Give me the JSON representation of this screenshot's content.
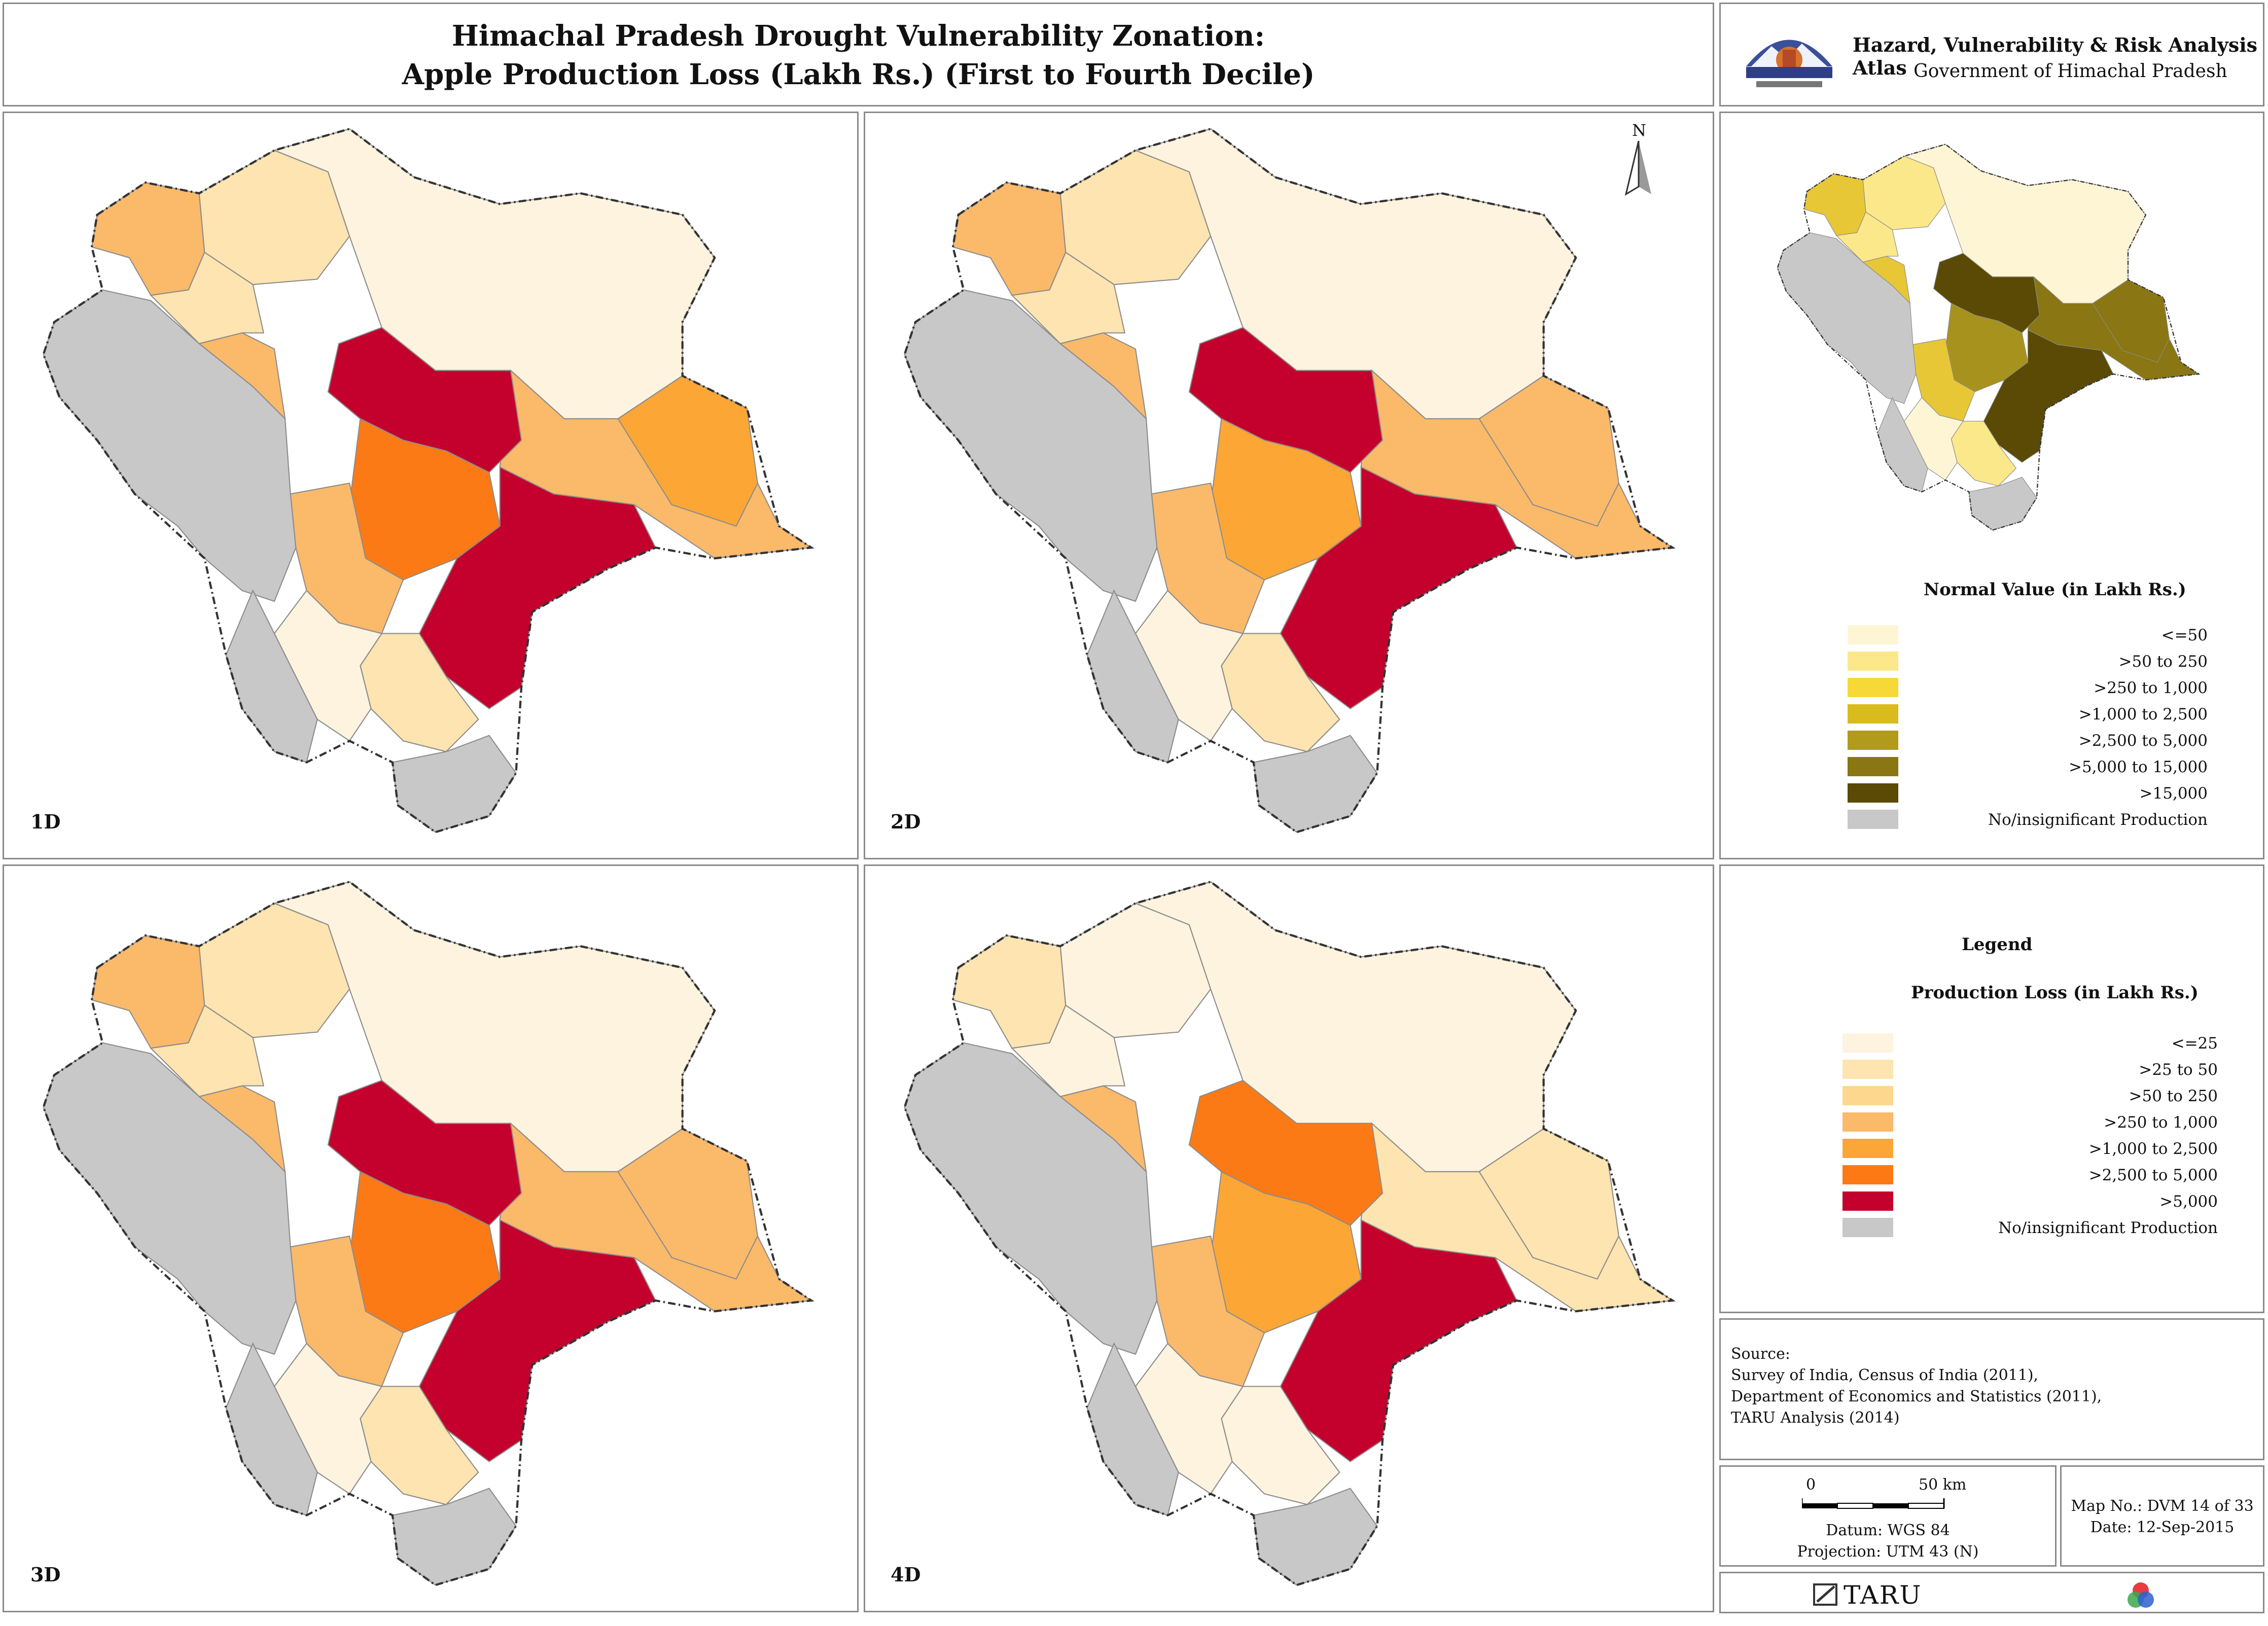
{
  "header": {
    "title_line1": "Himachal Pradesh Drought Vulnerability Zonation:",
    "title_line2": "Apple Production Loss (Lakh Rs.) (First to Fourth Decile)",
    "atlas_title": "Hazard, Vulnerability & Risk Analysis Atlas",
    "atlas_subtitle": "Government of Himachal Pradesh"
  },
  "maps": [
    {
      "label": "1D",
      "colors": {
        "north_west": "#fbb96a",
        "chamba_east": "#fde4b0",
        "lahaul": "#fef3df",
        "kinnaur": "#fbb96a",
        "kinnaur_east": "#fca636",
        "kullu": "#c4002c",
        "mandi_center": "#fb7a16",
        "shimla": "#c4002c",
        "sirmaur": "#fde4b0",
        "solan": "#fef3df",
        "mandi_west": "#fbb96a"
      }
    },
    {
      "label": "2D",
      "colors": {
        "north_west": "#fbb96a",
        "chamba_east": "#fde4b0",
        "lahaul": "#fef3df",
        "kinnaur": "#fbb96a",
        "kinnaur_east": "#fbb96a",
        "kullu": "#c4002c",
        "mandi_center": "#fca636",
        "shimla": "#c4002c",
        "sirmaur": "#fde4b0",
        "solan": "#fef3df",
        "mandi_west": "#fbb96a"
      }
    },
    {
      "label": "3D",
      "colors": {
        "north_west": "#fbb96a",
        "chamba_east": "#fde4b0",
        "lahaul": "#fef3df",
        "kinnaur": "#fbb96a",
        "kinnaur_east": "#fbb96a",
        "kullu": "#c4002c",
        "mandi_center": "#fb7a16",
        "shimla": "#c4002c",
        "sirmaur": "#fde4b0",
        "solan": "#fef3df",
        "mandi_west": "#fbb96a"
      }
    },
    {
      "label": "4D",
      "colors": {
        "north_west": "#fde4b0",
        "chamba_east": "#fef3df",
        "lahaul": "#fef3df",
        "kinnaur": "#fde4b0",
        "kinnaur_east": "#fde4b0",
        "kullu": "#fb7a16",
        "mandi_center": "#fca636",
        "shimla": "#c4002c",
        "sirmaur": "#fef3df",
        "solan": "#fef3df",
        "mandi_west": "#fbb96a"
      }
    }
  ],
  "north_arrow": {
    "label": "N"
  },
  "normal_map": {
    "title": "Normal Value (in Lakh Rs.)",
    "colors": {
      "north_west": "#e8c737",
      "chamba_east": "#fbe88a",
      "lahaul": "#fdf5d4",
      "kinnaur": "#8a7612",
      "kinnaur_east": "#8a7612",
      "kullu": "#5a4a05",
      "mandi_center": "#a8921e",
      "shimla": "#5a4a05",
      "sirmaur": "#fbe88a",
      "solan": "#fdf5d4",
      "mandi_west": "#e8c737"
    },
    "items": [
      {
        "label": "<=50",
        "color": "#fdf5d4"
      },
      {
        "label": ">50 to 250",
        "color": "#fbe88a"
      },
      {
        "label": ">250 to 1,000",
        "color": "#f6d936"
      },
      {
        "label": ">1,000 to 2,500",
        "color": "#d9bb1d"
      },
      {
        "label": ">2,500 to 5,000",
        "color": "#b19a1c"
      },
      {
        "label": ">5,000 to 15,000",
        "color": "#8a7612"
      },
      {
        "label": ">15,000",
        "color": "#5a4a05"
      },
      {
        "label": "No/insignificant Production",
        "color": "#c8c8c8"
      }
    ]
  },
  "legend": {
    "heading": "Legend",
    "title": "Production Loss (in Lakh Rs.)",
    "items": [
      {
        "label": "<=25",
        "color": "#fef3df"
      },
      {
        "label": ">25 to 50",
        "color": "#fde4b0"
      },
      {
        "label": ">50 to 250",
        "color": "#fdd78d"
      },
      {
        "label": ">250 to 1,000",
        "color": "#fbb96a"
      },
      {
        "label": ">1,000 to 2,500",
        "color": "#fca636"
      },
      {
        "label": ">2,500 to 5,000",
        "color": "#fb7a16"
      },
      {
        "label": ">5,000",
        "color": "#c4002c"
      },
      {
        "label": "No/insignificant Production",
        "color": "#c8c8c8"
      }
    ]
  },
  "source": {
    "heading": "Source:",
    "lines": [
      "Survey of India, Census of India (2011),",
      "Department of Economics and Statistics (2011),",
      "TARU Analysis (2014)"
    ]
  },
  "scale": {
    "zero": "0",
    "distance": "50 km",
    "datum": "Datum: WGS 84",
    "projection": "Projection: UTM 43 (N)"
  },
  "map_info": {
    "map_no": "Map No.: DVM 14 of 33",
    "date": "Date: 12-Sep-2015"
  },
  "footer": {
    "brand": "TARU"
  },
  "colors": {
    "no_production": "#c8c8c8",
    "border": "#333333"
  }
}
